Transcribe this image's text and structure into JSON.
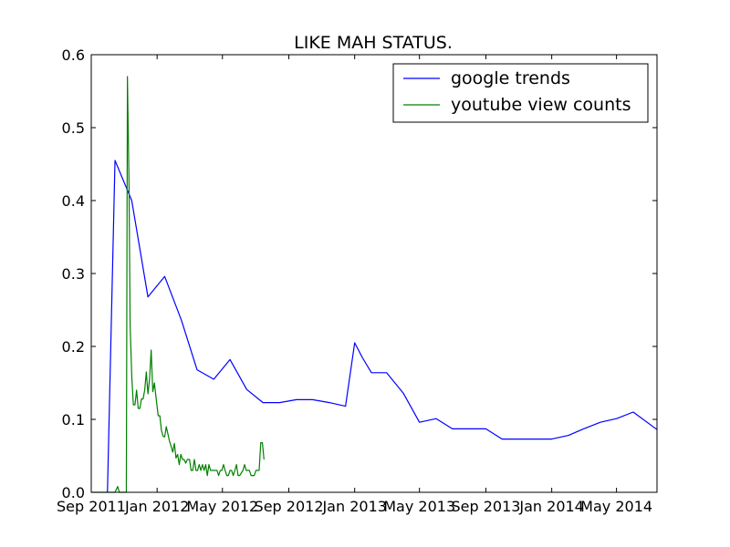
{
  "chart_data": {
    "type": "line",
    "title": "LIKE MAH STATUS.",
    "xlabel": "",
    "ylabel": "",
    "xlim": [
      "2011-09-01",
      "2014-07-15"
    ],
    "ylim": [
      0,
      0.6
    ],
    "grid": false,
    "legend_position": "top-right",
    "x_ticks": [
      {
        "date": "2011-09-01",
        "label": "Sep 2011"
      },
      {
        "date": "2012-01-01",
        "label": "Jan 2012"
      },
      {
        "date": "2012-05-01",
        "label": "May 2012"
      },
      {
        "date": "2012-09-01",
        "label": "Sep 2012"
      },
      {
        "date": "2013-01-01",
        "label": "Jan 2013"
      },
      {
        "date": "2013-05-01",
        "label": "May 2013"
      },
      {
        "date": "2013-09-01",
        "label": "Sep 2013"
      },
      {
        "date": "2014-01-01",
        "label": "Jan 2014"
      },
      {
        "date": "2014-05-01",
        "label": "May 2014"
      }
    ],
    "y_ticks": [
      {
        "value": 0.0,
        "label": "0.0"
      },
      {
        "value": 0.1,
        "label": "0.1"
      },
      {
        "value": 0.2,
        "label": "0.2"
      },
      {
        "value": 0.3,
        "label": "0.3"
      },
      {
        "value": 0.4,
        "label": "0.4"
      },
      {
        "value": 0.5,
        "label": "0.5"
      },
      {
        "value": 0.6,
        "label": "0.6"
      }
    ],
    "series": [
      {
        "name": "google trends",
        "color": "#0000ff",
        "points": [
          [
            "2011-10-01",
            0.0
          ],
          [
            "2011-10-15",
            0.455
          ],
          [
            "2011-11-15",
            0.4
          ],
          [
            "2011-12-15",
            0.268
          ],
          [
            "2012-01-15",
            0.296
          ],
          [
            "2012-02-15",
            0.236
          ],
          [
            "2012-03-15",
            0.168
          ],
          [
            "2012-04-15",
            0.155
          ],
          [
            "2012-05-15",
            0.182
          ],
          [
            "2012-06-15",
            0.141
          ],
          [
            "2012-07-15",
            0.123
          ],
          [
            "2012-08-15",
            0.123
          ],
          [
            "2012-09-15",
            0.127
          ],
          [
            "2012-10-15",
            0.127
          ],
          [
            "2012-11-15",
            0.123
          ],
          [
            "2012-12-15",
            0.118
          ],
          [
            "2013-01-01",
            0.205
          ],
          [
            "2013-01-15",
            0.185
          ],
          [
            "2013-02-01",
            0.164
          ],
          [
            "2013-03-01",
            0.164
          ],
          [
            "2013-04-01",
            0.136
          ],
          [
            "2013-05-01",
            0.096
          ],
          [
            "2013-06-01",
            0.101
          ],
          [
            "2013-07-01",
            0.087
          ],
          [
            "2013-08-01",
            0.087
          ],
          [
            "2013-09-01",
            0.087
          ],
          [
            "2013-10-01",
            0.073
          ],
          [
            "2013-11-01",
            0.073
          ],
          [
            "2013-12-01",
            0.073
          ],
          [
            "2014-01-01",
            0.073
          ],
          [
            "2014-02-01",
            0.078
          ],
          [
            "2014-03-01",
            0.087
          ],
          [
            "2014-04-01",
            0.096
          ],
          [
            "2014-05-01",
            0.101
          ],
          [
            "2014-06-01",
            0.11
          ],
          [
            "2014-07-15",
            0.086
          ]
        ]
      },
      {
        "name": "youtube view counts",
        "color": "#008000",
        "points": [
          [
            "2011-09-01",
            0.0
          ],
          [
            "2011-10-15",
            0.0
          ],
          [
            "2011-10-20",
            0.008
          ],
          [
            "2011-10-23",
            0.0
          ],
          [
            "2011-11-05",
            0.0
          ],
          [
            "2011-11-07",
            0.57
          ],
          [
            "2011-11-10",
            0.42
          ],
          [
            "2011-11-12",
            0.23
          ],
          [
            "2011-11-15",
            0.16
          ],
          [
            "2011-11-18",
            0.12
          ],
          [
            "2011-11-21",
            0.12
          ],
          [
            "2011-11-24",
            0.14
          ],
          [
            "2011-11-27",
            0.115
          ],
          [
            "2011-11-30",
            0.115
          ],
          [
            "2011-12-03",
            0.128
          ],
          [
            "2011-12-06",
            0.128
          ],
          [
            "2011-12-09",
            0.14
          ],
          [
            "2011-12-12",
            0.165
          ],
          [
            "2011-12-15",
            0.135
          ],
          [
            "2011-12-18",
            0.155
          ],
          [
            "2011-12-21",
            0.195
          ],
          [
            "2011-12-24",
            0.138
          ],
          [
            "2011-12-27",
            0.15
          ],
          [
            "2011-12-30",
            0.13
          ],
          [
            "2012-01-03",
            0.105
          ],
          [
            "2012-01-06",
            0.105
          ],
          [
            "2012-01-09",
            0.085
          ],
          [
            "2012-01-12",
            0.077
          ],
          [
            "2012-01-15",
            0.076
          ],
          [
            "2012-01-18",
            0.09
          ],
          [
            "2012-01-21",
            0.08
          ],
          [
            "2012-01-24",
            0.07
          ],
          [
            "2012-01-27",
            0.063
          ],
          [
            "2012-01-30",
            0.055
          ],
          [
            "2012-02-02",
            0.067
          ],
          [
            "2012-02-05",
            0.047
          ],
          [
            "2012-02-08",
            0.052
          ],
          [
            "2012-02-11",
            0.038
          ],
          [
            "2012-02-14",
            0.052
          ],
          [
            "2012-02-17",
            0.045
          ],
          [
            "2012-02-20",
            0.045
          ],
          [
            "2012-02-23",
            0.04
          ],
          [
            "2012-02-26",
            0.045
          ],
          [
            "2012-03-01",
            0.045
          ],
          [
            "2012-03-04",
            0.03
          ],
          [
            "2012-03-07",
            0.03
          ],
          [
            "2012-03-10",
            0.045
          ],
          [
            "2012-03-13",
            0.03
          ],
          [
            "2012-03-16",
            0.03
          ],
          [
            "2012-03-19",
            0.038
          ],
          [
            "2012-03-22",
            0.03
          ],
          [
            "2012-03-25",
            0.038
          ],
          [
            "2012-03-28",
            0.03
          ],
          [
            "2012-03-31",
            0.038
          ],
          [
            "2012-04-03",
            0.023
          ],
          [
            "2012-04-06",
            0.038
          ],
          [
            "2012-04-09",
            0.03
          ],
          [
            "2012-04-15",
            0.03
          ],
          [
            "2012-04-21",
            0.03
          ],
          [
            "2012-04-24",
            0.023
          ],
          [
            "2012-04-27",
            0.03
          ],
          [
            "2012-04-30",
            0.03
          ],
          [
            "2012-05-03",
            0.038
          ],
          [
            "2012-05-06",
            0.03
          ],
          [
            "2012-05-09",
            0.023
          ],
          [
            "2012-05-12",
            0.023
          ],
          [
            "2012-05-15",
            0.03
          ],
          [
            "2012-05-18",
            0.03
          ],
          [
            "2012-05-21",
            0.023
          ],
          [
            "2012-05-24",
            0.03
          ],
          [
            "2012-05-27",
            0.038
          ],
          [
            "2012-05-30",
            0.023
          ],
          [
            "2012-06-02",
            0.023
          ],
          [
            "2012-06-08",
            0.03
          ],
          [
            "2012-06-11",
            0.038
          ],
          [
            "2012-06-14",
            0.03
          ],
          [
            "2012-06-20",
            0.03
          ],
          [
            "2012-06-23",
            0.023
          ],
          [
            "2012-06-29",
            0.023
          ],
          [
            "2012-07-02",
            0.03
          ],
          [
            "2012-07-08",
            0.03
          ],
          [
            "2012-07-11",
            0.068
          ],
          [
            "2012-07-14",
            0.068
          ],
          [
            "2012-07-17",
            0.045
          ]
        ]
      }
    ]
  }
}
